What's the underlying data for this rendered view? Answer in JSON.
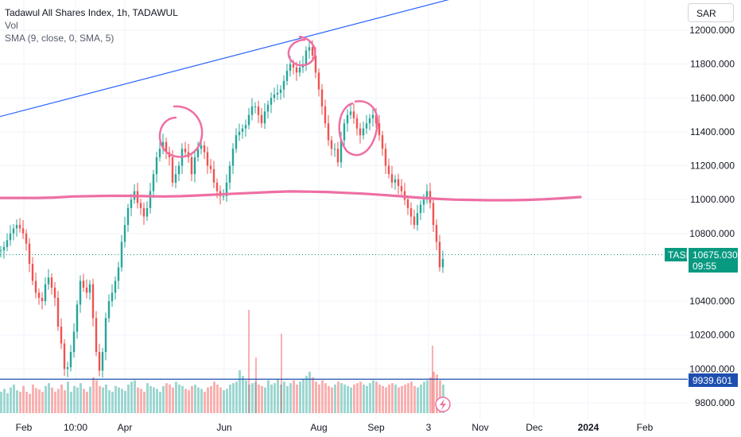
{
  "legend": {
    "title": "Tadawul All Shares Index, 1h, TADAWUL",
    "vol": "Vol",
    "sma": "SMA (9, close, 0, SMA, 5)"
  },
  "currency": "SAR",
  "colors": {
    "up": "#26a69a",
    "down": "#ef5350",
    "line": "#2962ff",
    "drawing": "#ee6fa3",
    "badge": "#089981",
    "support": "#1e4fb0",
    "grid": "#f0f3fa"
  },
  "price_badge": {
    "symbol": "TASI",
    "price": "10675.030",
    "countdown": "09:55"
  },
  "support_badge": {
    "price": "9939.601"
  },
  "chart_data": {
    "type": "line",
    "title": "Tadawul All Shares Index, 1h, TADAWUL",
    "y_ticks": [
      "12000.000",
      "11800.000",
      "11600.000",
      "11400.000",
      "11200.000",
      "11000.000",
      "10800.000",
      "10400.000",
      "10200.000",
      "10000.000",
      "9800.000"
    ],
    "x_ticks": [
      "Feb",
      "10:00",
      "Apr",
      "Jun",
      "Aug",
      "Sep",
      "3",
      "Nov",
      "Dec",
      "2024",
      "Feb"
    ],
    "ylim": [
      9760,
      12060
    ],
    "series": [
      {
        "x": [
          0,
          4,
          8,
          12,
          16,
          20,
          24,
          28,
          32,
          36,
          40,
          44,
          48,
          52,
          56,
          60,
          64,
          68,
          72,
          76,
          80,
          84,
          88,
          92,
          96,
          100,
          104,
          108,
          112,
          116,
          120,
          124,
          128,
          132,
          136,
          140,
          144,
          148,
          152,
          156,
          160,
          164,
          168,
          172,
          176,
          180,
          184,
          188,
          192,
          196,
          200,
          204,
          208,
          212,
          216,
          220,
          224,
          228,
          232,
          236,
          240,
          244,
          248,
          252,
          256,
          260,
          264,
          268,
          272,
          276,
          280,
          284,
          288,
          292,
          296,
          300,
          304,
          308,
          312,
          316,
          320,
          324,
          328,
          332,
          336,
          340,
          344,
          348,
          352,
          356,
          360,
          364,
          368,
          372,
          376,
          380,
          384,
          388,
          392,
          396,
          400,
          404,
          408,
          412,
          416,
          420,
          424,
          428,
          432,
          436,
          440,
          444,
          448,
          452,
          456,
          460,
          464,
          468,
          472,
          476,
          480,
          484,
          488,
          492,
          496,
          500,
          504,
          508,
          512,
          516,
          520,
          524,
          528,
          532,
          536,
          540,
          544,
          548,
          552,
          556
        ],
        "y": [
          10700,
          10720,
          10760,
          10800,
          10830,
          10850,
          10830,
          10800,
          10740,
          10620,
          10520,
          10450,
          10420,
          10400,
          10500,
          10540,
          10480,
          10420,
          10250,
          10150,
          10000,
          10010,
          10100,
          10220,
          10380,
          10520,
          10480,
          10450,
          10500,
          10300,
          10100,
          9990,
          10100,
          10300,
          10400,
          10450,
          10520,
          10600,
          10750,
          10850,
          10950,
          11000,
          11050,
          10980,
          10950,
          10900,
          10950,
          11050,
          11150,
          11250,
          11300,
          11340,
          11280,
          11250,
          11100,
          11150,
          11200,
          11300,
          11280,
          11250,
          11150,
          11250,
          11300,
          11320,
          11280,
          11200,
          11180,
          11100,
          11050,
          11020,
          11020,
          11100,
          11200,
          11300,
          11380,
          11400,
          11420,
          11440,
          11500,
          11550,
          11550,
          11500,
          11450,
          11520,
          11560,
          11600,
          11620,
          11630,
          11650,
          11700,
          11760,
          11800,
          11780,
          11750,
          11780,
          11800,
          11880,
          11900,
          11850,
          11750,
          11650,
          11550,
          11450,
          11350,
          11300,
          11300,
          11220,
          11350,
          11450,
          11500,
          11520,
          11480,
          11420,
          11380,
          11420,
          11450,
          11480,
          11500,
          11450,
          11380,
          11300,
          11200,
          11150,
          11100,
          11120,
          11080,
          11050,
          11000,
          10950,
          10900,
          10850,
          10920,
          10970,
          11000,
          11050,
          10980,
          10850,
          10750,
          10600,
          10650
        ]
      }
    ],
    "volume": [
      30,
      34,
      28,
      36,
      40,
      32,
      30,
      38,
      30,
      27,
      40,
      35,
      33,
      30,
      38,
      42,
      36,
      30,
      34,
      40,
      32,
      44,
      30,
      38,
      36,
      42,
      34,
      30,
      37,
      50,
      46,
      38,
      36,
      40,
      32,
      30,
      38,
      36,
      34,
      31,
      40,
      44,
      46,
      36,
      34,
      30,
      42,
      38,
      36,
      34,
      30,
      38,
      42,
      40,
      36,
      44,
      40,
      38,
      34,
      32,
      38,
      40,
      36,
      34,
      30,
      36,
      38,
      44,
      40,
      36,
      32,
      34,
      40,
      42,
      44,
      60,
      52,
      46,
      40,
      42,
      44,
      40,
      38,
      36,
      46,
      40,
      42,
      48,
      40,
      44,
      38,
      42,
      46,
      40,
      44,
      48,
      52,
      58,
      50,
      44,
      40,
      46,
      42,
      38,
      36,
      40,
      44,
      42,
      40,
      38,
      36,
      40,
      42,
      44,
      40,
      38,
      42,
      46,
      44,
      40,
      38,
      36,
      40,
      42,
      40,
      36,
      38,
      40,
      42,
      44,
      38,
      36,
      40,
      44,
      46,
      50,
      58,
      54,
      46,
      40
    ],
    "sma_curve_y": [
      11010,
      11010,
      11010,
      11012,
      11018,
      11020,
      11022,
      11022,
      11020,
      11018,
      11020,
      11025,
      11030,
      11035,
      11040,
      11045,
      11048,
      11047,
      11045,
      11040,
      11035,
      11028,
      11020,
      11012,
      11005,
      11000,
      10998,
      10996,
      10996,
      10998,
      11002,
      11008,
      11015
    ],
    "resistance_line": [
      11490,
      12300
    ],
    "support_level": 9939.601,
    "last_price": 10675.03
  }
}
